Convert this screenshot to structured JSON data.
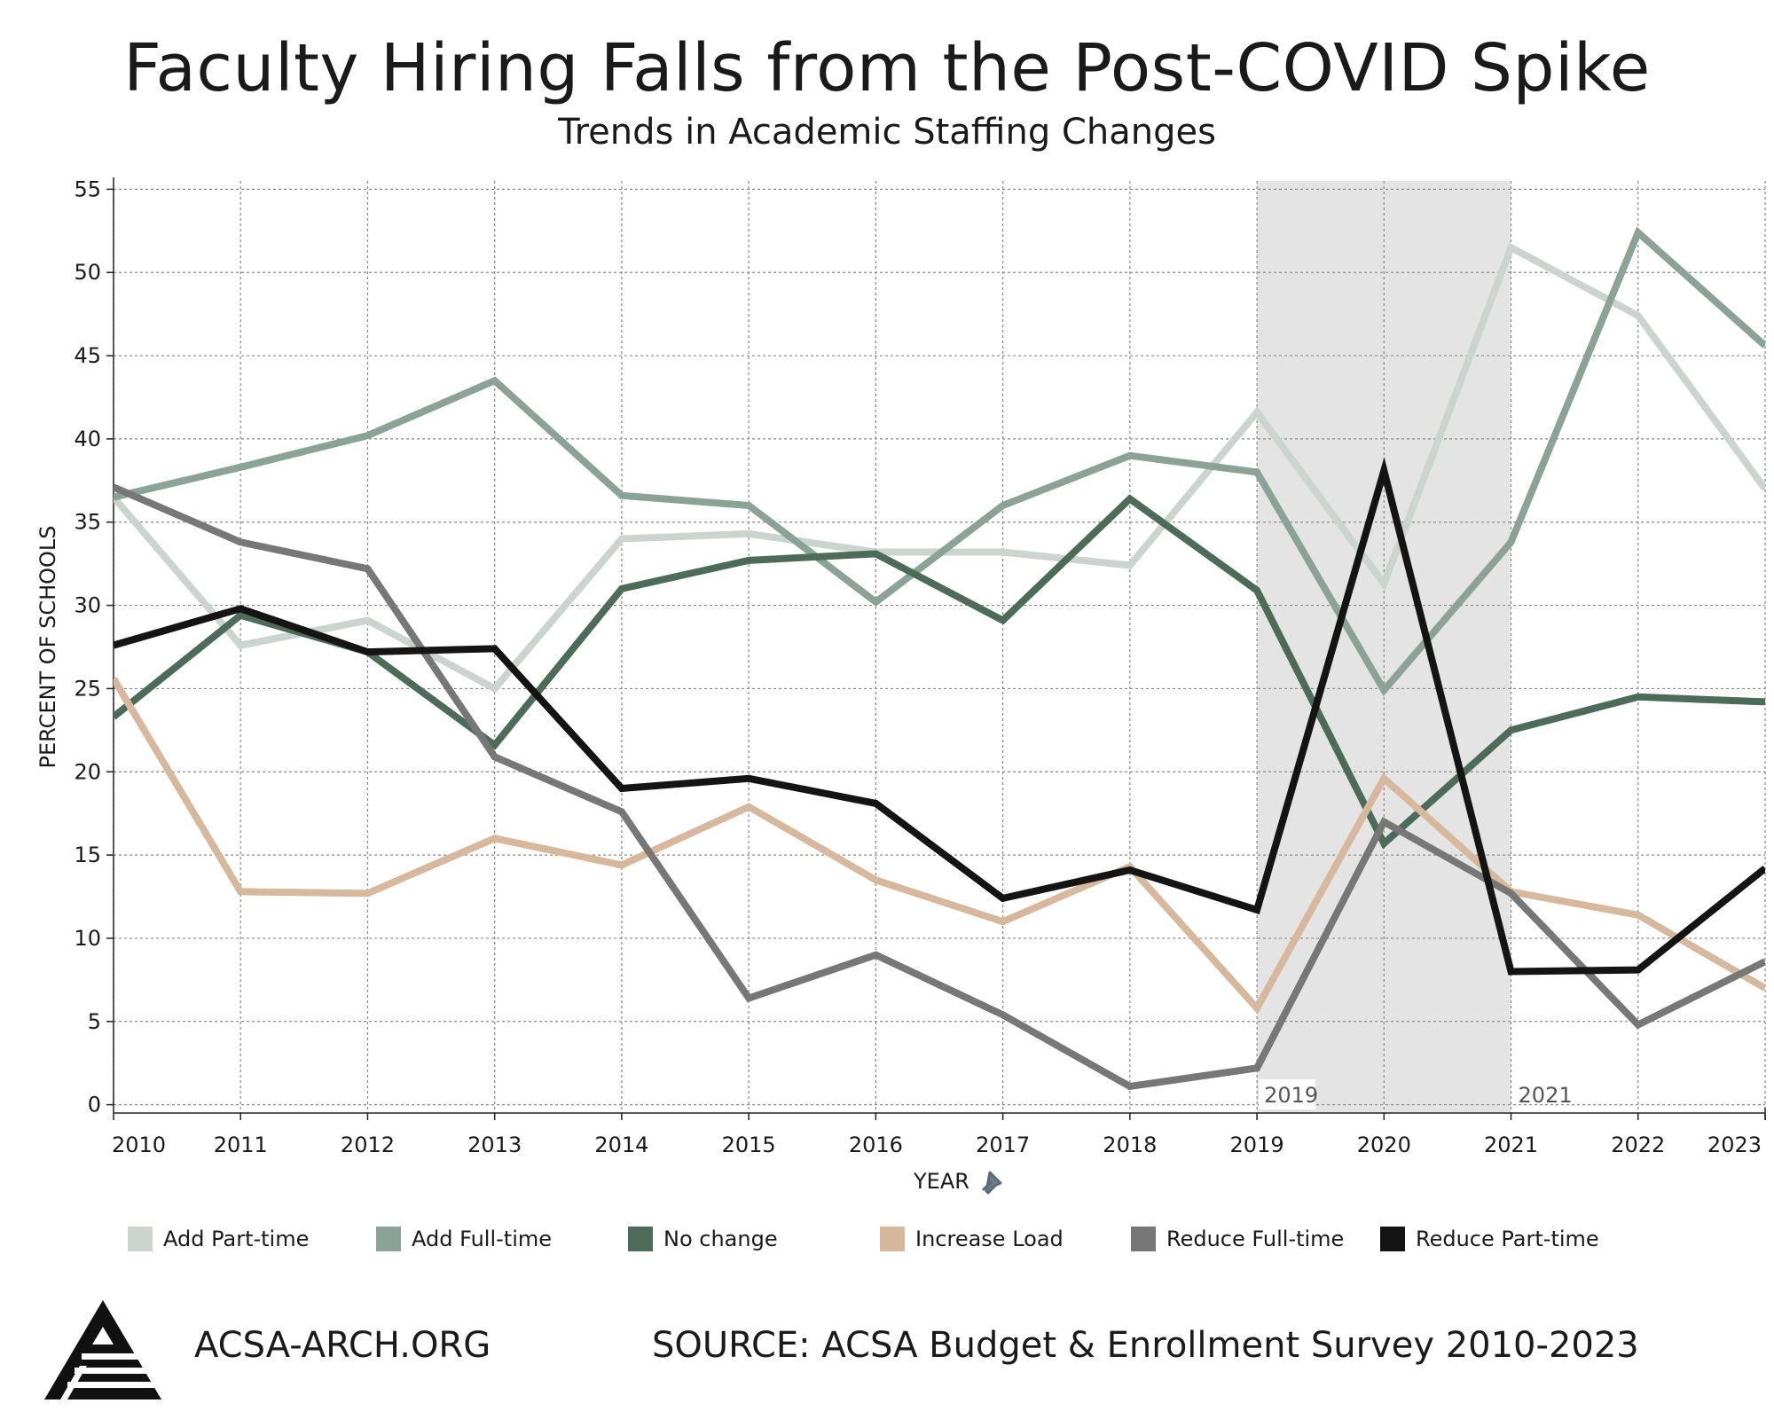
{
  "header": {
    "title": "Faculty Hiring Falls from the Post-COVID Spike",
    "subtitle": "Trends in Academic Staffing Changes"
  },
  "chart_data": {
    "type": "line",
    "title": "Faculty Hiring Falls from the Post-COVID Spike",
    "subtitle": "Trends in Academic Staffing Changes",
    "xlabel": "YEAR",
    "ylabel": "PERCENT OF SCHOOLS",
    "x": [
      2010,
      2011,
      2012,
      2013,
      2014,
      2015,
      2016,
      2017,
      2018,
      2019,
      2020,
      2021,
      2022,
      2023
    ],
    "xlim": [
      2010,
      2023
    ],
    "ylim": [
      -0.5,
      55.5
    ],
    "yticks": [
      0,
      5,
      10,
      15,
      20,
      25,
      30,
      35,
      40,
      45,
      50,
      55
    ],
    "grid": true,
    "legend_position": "bottom",
    "shaded_region": {
      "start": 2019,
      "end": 2021,
      "labels": [
        "2019",
        "2021"
      ]
    },
    "series": [
      {
        "name": "Add Part-time",
        "color": "#cbd4cf",
        "values": [
          36.5,
          27.6,
          29.1,
          25.0,
          34.0,
          34.3,
          33.2,
          33.2,
          32.4,
          41.6,
          31.3,
          51.5,
          47.4,
          37.0
        ]
      },
      {
        "name": "Add Full-time",
        "color": "#8aa396",
        "values": [
          36.5,
          38.3,
          40.2,
          43.5,
          36.6,
          36.0,
          30.2,
          36.0,
          39.0,
          38.0,
          24.9,
          33.8,
          52.4,
          45.6
        ]
      },
      {
        "name": "No change",
        "color": "#4c6b59",
        "values": [
          23.3,
          29.4,
          27.2,
          21.6,
          31.0,
          32.7,
          33.1,
          29.1,
          36.4,
          30.9,
          15.7,
          22.5,
          24.5,
          24.2
        ]
      },
      {
        "name": "Increase Load",
        "color": "#d8b89c",
        "values": [
          25.6,
          12.8,
          12.7,
          16.0,
          14.4,
          17.9,
          13.5,
          11.0,
          14.3,
          5.8,
          19.6,
          12.8,
          11.4,
          7.0
        ]
      },
      {
        "name": "Reduce Full-time",
        "color": "#777777",
        "values": [
          37.1,
          33.8,
          32.2,
          20.9,
          17.6,
          6.4,
          9.0,
          5.4,
          1.1,
          2.2,
          17.0,
          12.7,
          4.8,
          8.6
        ]
      },
      {
        "name": "Reduce Part-time",
        "color": "#141414",
        "values": [
          27.6,
          29.8,
          27.2,
          27.4,
          19.0,
          19.6,
          18.1,
          12.4,
          14.1,
          11.7,
          38.1,
          8.0,
          8.1,
          14.2
        ]
      }
    ]
  },
  "footer": {
    "url": "ACSA-ARCH.ORG",
    "source": "SOURCE: ACSA Budget & Enrollment Survey 2010-2023"
  },
  "icons": {
    "axis_pin": "pin-icon",
    "logo": "acsa-logo-icon"
  }
}
